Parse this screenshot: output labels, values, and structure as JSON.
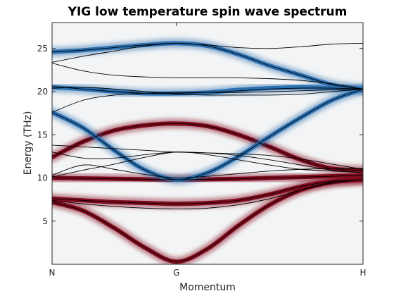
{
  "chart_data": {
    "type": "line",
    "title": "YIG low temperature spin wave spectrum",
    "xlabel": "Momentum",
    "ylabel": "Energy (THz)",
    "xlim": [
      0,
      1
    ],
    "ylim": [
      0,
      28
    ],
    "x_ticks": [
      {
        "pos": 0.0,
        "label": "N"
      },
      {
        "pos": 0.4,
        "label": "G"
      },
      {
        "pos": 1.0,
        "label": "H"
      }
    ],
    "y_ticks": [
      5,
      10,
      15,
      20,
      25
    ],
    "grid": false,
    "colors": {
      "background": "#f3f4f5",
      "dispersion_line": "#000000",
      "intensity_red": "#7f0a1d",
      "intensity_blue": "#2a6fb0"
    },
    "intensity_bands": [
      {
        "name": "b1",
        "color": "red",
        "x": [
          0,
          0.1,
          0.2,
          0.3,
          0.4,
          0.5,
          0.6,
          0.7,
          0.8,
          0.9,
          1.0
        ],
        "y": [
          7.2,
          6.2,
          4.2,
          1.9,
          0.3,
          1.8,
          4.5,
          6.9,
          8.6,
          9.5,
          9.8
        ]
      },
      {
        "name": "b2",
        "color": "red",
        "x": [
          0,
          0.1,
          0.2,
          0.3,
          0.4,
          0.5,
          0.6,
          0.7,
          0.8,
          0.9,
          1.0
        ],
        "y": [
          7.6,
          7.4,
          7.2,
          7.1,
          7.0,
          7.1,
          7.4,
          8.1,
          9.0,
          9.6,
          9.8
        ]
      },
      {
        "name": "b3",
        "color": "red",
        "x": [
          0,
          0.1,
          0.2,
          0.3,
          0.4,
          0.5,
          0.6,
          0.7,
          0.8,
          0.9,
          1.0
        ],
        "y": [
          12.4,
          14.2,
          15.5,
          16.1,
          16.3,
          16.0,
          15.0,
          13.6,
          12.1,
          11.1,
          10.9
        ]
      },
      {
        "name": "b4",
        "color": "red",
        "x": [
          0,
          0.1,
          0.2,
          0.3,
          0.4,
          0.5,
          0.6,
          0.7,
          0.8,
          0.9,
          1.0
        ],
        "y": [
          10.0,
          9.95,
          9.9,
          9.85,
          9.8,
          9.85,
          9.9,
          10.0,
          10.1,
          10.2,
          10.3
        ]
      },
      {
        "name": "b5",
        "color": "blue",
        "x": [
          0,
          0.1,
          0.2,
          0.3,
          0.4,
          0.5,
          0.6,
          0.7,
          0.8,
          0.9,
          1.0
        ],
        "y": [
          24.6,
          24.8,
          25.1,
          25.4,
          25.6,
          25.3,
          24.3,
          23.0,
          21.9,
          20.8,
          20.3
        ]
      },
      {
        "name": "b6",
        "color": "blue",
        "x": [
          0,
          0.1,
          0.2,
          0.3,
          0.4,
          0.5,
          0.6,
          0.7,
          0.8,
          0.9,
          1.0
        ],
        "y": [
          20.5,
          20.3,
          20.0,
          19.8,
          19.8,
          19.9,
          20.2,
          20.4,
          20.5,
          20.4,
          20.3
        ]
      },
      {
        "name": "b7",
        "color": "blue",
        "x": [
          0,
          0.1,
          0.2,
          0.3,
          0.4,
          0.5,
          0.6,
          0.7,
          0.8,
          0.9,
          1.0
        ],
        "y": [
          17.6,
          15.8,
          13.2,
          10.9,
          9.8,
          10.6,
          12.5,
          14.8,
          17.0,
          19.0,
          20.3
        ]
      }
    ],
    "dispersion_lines": [
      {
        "name": "d1",
        "x": [
          0,
          0.1,
          0.2,
          0.3,
          0.4,
          0.5,
          0.6,
          0.7,
          0.8,
          0.9,
          1.0
        ],
        "y": [
          7.2,
          6.2,
          4.2,
          1.9,
          0.3,
          1.8,
          4.5,
          6.9,
          8.6,
          9.5,
          9.8
        ]
      },
      {
        "name": "d2",
        "x": [
          0,
          0.1,
          0.2,
          0.3,
          0.4,
          0.5,
          0.6,
          0.7,
          0.8,
          0.9,
          1.0
        ],
        "y": [
          7.6,
          7.4,
          7.2,
          7.1,
          7.0,
          7.1,
          7.4,
          8.1,
          9.0,
          9.6,
          9.8
        ]
      },
      {
        "name": "d3",
        "x": [
          0,
          0.1,
          0.2,
          0.3,
          0.4,
          0.5,
          0.6,
          0.7,
          0.8,
          0.9,
          1.0
        ],
        "y": [
          7.4,
          7.0,
          6.7,
          6.5,
          6.4,
          6.5,
          6.9,
          7.6,
          8.6,
          9.4,
          9.8
        ]
      },
      {
        "name": "d4",
        "x": [
          0,
          0.1,
          0.2,
          0.3,
          0.4,
          0.5,
          0.6,
          0.7,
          0.8,
          0.9,
          1.0
        ],
        "y": [
          12.4,
          14.2,
          15.5,
          16.1,
          16.3,
          16.0,
          15.0,
          13.6,
          12.1,
          11.1,
          10.9
        ]
      },
      {
        "name": "d5",
        "x": [
          0,
          0.1,
          0.2,
          0.3,
          0.4,
          0.5,
          0.6,
          0.7,
          0.8,
          0.9,
          1.0
        ],
        "y": [
          10.0,
          9.95,
          9.9,
          9.85,
          9.8,
          9.85,
          9.9,
          10.0,
          10.1,
          10.2,
          10.3
        ]
      },
      {
        "name": "d6",
        "x": [
          0,
          0.1,
          0.2,
          0.3,
          0.4,
          0.5,
          0.6,
          0.7,
          0.8,
          0.9,
          1.0
        ],
        "y": [
          13.8,
          13.6,
          13.4,
          13.2,
          13.0,
          12.9,
          12.8,
          12.6,
          12.2,
          11.6,
          11.0
        ]
      },
      {
        "name": "d7",
        "x": [
          0,
          0.1,
          0.2,
          0.3,
          0.4,
          0.5,
          0.6,
          0.7,
          0.8,
          0.9,
          1.0
        ],
        "y": [
          13.0,
          12.3,
          12.3,
          12.7,
          13.0,
          12.9,
          12.6,
          12.1,
          11.5,
          10.9,
          10.6
        ]
      },
      {
        "name": "d8",
        "x": [
          0,
          0.1,
          0.2,
          0.3,
          0.4,
          0.5,
          0.6,
          0.7,
          0.8,
          0.9,
          1.0
        ],
        "y": [
          10.1,
          10.9,
          11.6,
          12.4,
          13.0,
          12.7,
          12.1,
          11.5,
          11.0,
          10.8,
          10.6
        ]
      },
      {
        "name": "d9",
        "x": [
          0,
          0.1,
          0.2,
          0.3,
          0.4,
          0.5,
          0.6,
          0.7,
          0.8,
          0.9,
          1.0
        ],
        "y": [
          10.3,
          11.5,
          11.0,
          10.4,
          10.0,
          10.2,
          10.5,
          10.8,
          11.0,
          11.1,
          11.1
        ]
      },
      {
        "name": "d10",
        "x": [
          0,
          0.1,
          0.2,
          0.3,
          0.4,
          0.5,
          0.6,
          0.7,
          0.8,
          0.9,
          1.0
        ],
        "y": [
          17.6,
          15.8,
          13.2,
          10.9,
          9.8,
          10.6,
          12.5,
          14.8,
          17.0,
          19.0,
          20.3
        ]
      },
      {
        "name": "d11",
        "x": [
          0,
          0.1,
          0.2,
          0.3,
          0.4,
          0.5,
          0.6,
          0.7,
          0.8,
          0.9,
          1.0
        ],
        "y": [
          20.6,
          20.3,
          20.0,
          19.8,
          19.8,
          19.9,
          20.1,
          20.3,
          20.4,
          20.4,
          20.3
        ]
      },
      {
        "name": "d12",
        "x": [
          0,
          0.1,
          0.2,
          0.3,
          0.4,
          0.5,
          0.6,
          0.7,
          0.8,
          0.9,
          1.0
        ],
        "y": [
          20.4,
          20.5,
          20.3,
          20.0,
          19.7,
          19.6,
          19.6,
          19.6,
          19.7,
          20.0,
          20.3
        ]
      },
      {
        "name": "d13",
        "x": [
          0,
          0.1,
          0.2,
          0.3,
          0.4,
          0.5,
          0.6,
          0.7,
          0.8,
          0.9,
          1.0
        ],
        "y": [
          17.6,
          19.0,
          19.6,
          19.8,
          19.9,
          19.9,
          19.9,
          20.0,
          20.1,
          20.2,
          20.3
        ]
      },
      {
        "name": "d14",
        "x": [
          0,
          0.1,
          0.2,
          0.3,
          0.4,
          0.5,
          0.6,
          0.7,
          0.8,
          0.9,
          1.0
        ],
        "y": [
          24.6,
          24.8,
          25.1,
          25.4,
          25.6,
          25.3,
          24.3,
          23.0,
          21.9,
          20.8,
          20.3
        ]
      },
      {
        "name": "d15",
        "x": [
          0,
          0.1,
          0.2,
          0.3,
          0.4,
          0.5,
          0.6,
          0.7,
          0.8,
          0.9,
          1.0
        ],
        "y": [
          23.4,
          24.1,
          24.7,
          25.3,
          25.6,
          25.4,
          25.1,
          25.0,
          25.2,
          25.5,
          25.6
        ]
      },
      {
        "name": "d16",
        "x": [
          0,
          0.1,
          0.2,
          0.3,
          0.4,
          0.5,
          0.6,
          0.7,
          0.8,
          0.9,
          1.0
        ],
        "y": [
          23.3,
          22.4,
          21.9,
          21.7,
          21.6,
          21.6,
          21.6,
          21.5,
          21.3,
          20.9,
          20.3
        ]
      }
    ]
  }
}
